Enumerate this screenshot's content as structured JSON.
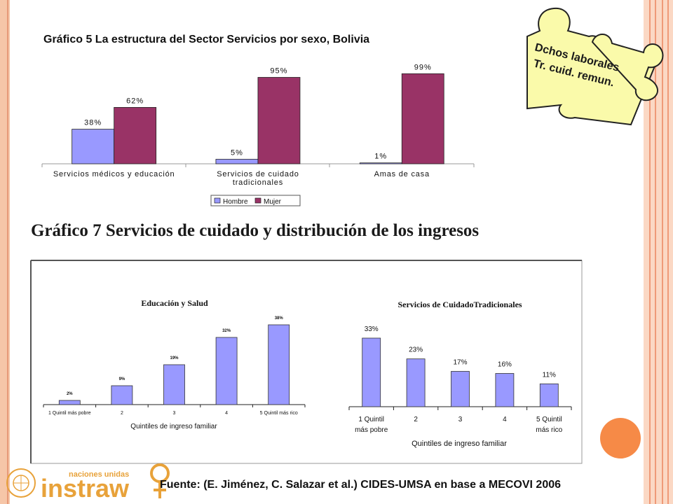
{
  "chart_title": "Gráfico 5 La estructura del Sector Servicios por sexo, Bolivia",
  "section_title": "Gráfico 7 Servicios de cuidado y distribución de los ingresos",
  "puzzle": {
    "line1": "Dchos laborales",
    "line2": "Tr. cuid. remun."
  },
  "footer": {
    "source": "Fuente: (E. Jiménez, C. Salazar et al.) CIDES-UMSA en base a MECOVI 2006",
    "logo_small": "naciones unidas",
    "logo_big": "instraw"
  },
  "colors": {
    "hombre": "#9999ff",
    "mujer": "#993366",
    "accent": "#f68a47"
  },
  "chart_data": [
    {
      "type": "bar",
      "title": "Gráfico 5 La estructura del Sector Servicios por sexo, Bolivia",
      "categories": [
        "Servicios médicos y educación",
        "Servicios de cuidado tradicionales",
        "Amas de casa"
      ],
      "category_lines": [
        [
          "Servicios médicos y educación"
        ],
        [
          "Servicios de cuidado",
          "tradicionales"
        ],
        [
          "Amas de casa"
        ]
      ],
      "series": [
        {
          "name": "Hombre",
          "values": [
            38,
            5,
            1
          ],
          "labels": [
            "38%",
            "5%",
            "1%"
          ]
        },
        {
          "name": "Mujer",
          "values": [
            62,
            95,
            99
          ],
          "labels": [
            "62%",
            "95%",
            "99%"
          ]
        }
      ],
      "ylim": [
        0,
        100
      ],
      "legend": "bottom"
    },
    {
      "type": "bar",
      "title": "Educación y Salud",
      "categories": [
        "1 Quintil más pobre",
        "2",
        "3",
        "4",
        "5 Quintil más rico"
      ],
      "values": [
        2,
        9,
        19,
        32,
        38
      ],
      "labels": [
        "2%",
        "9%",
        "19%",
        "32%",
        "38%"
      ],
      "xlabel": "Quintiles de ingreso familiar",
      "ylim": [
        0,
        40
      ]
    },
    {
      "type": "bar",
      "title": "Servicios de CuidadoTradicionales",
      "categories": [
        "1 Quintil más pobre",
        "2",
        "3",
        "4",
        "5 Quintil más rico"
      ],
      "category_lines": [
        [
          "1 Quintil",
          "más pobre"
        ],
        [
          "2"
        ],
        [
          "3"
        ],
        [
          "4"
        ],
        [
          "5 Quintil",
          "más rico"
        ]
      ],
      "values": [
        33,
        23,
        17,
        16,
        11
      ],
      "labels": [
        "33%",
        "23%",
        "17%",
        "16%",
        "11%"
      ],
      "xlabel": "Quintiles de ingreso familiar",
      "ylim": [
        0,
        40
      ]
    }
  ]
}
